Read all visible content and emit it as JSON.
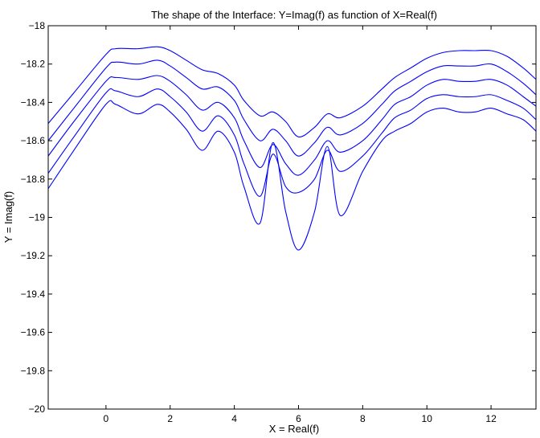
{
  "chart_data": {
    "type": "line",
    "title": "The shape of the Interface: Y=Imag(f) as function of X=Real(f)",
    "xlabel": "X = Real(f)",
    "ylabel": "Y = Imag(f)",
    "xlim": [
      -1.8,
      13.4
    ],
    "ylim": [
      -20,
      -18
    ],
    "xticks": [
      0,
      2,
      4,
      6,
      8,
      10,
      12
    ],
    "yticks": [
      -20,
      -19.8,
      -19.6,
      -19.4,
      -19.2,
      -19,
      -18.8,
      -18.6,
      -18.4,
      -18.2,
      -18
    ],
    "grid": false,
    "legend": "none",
    "line_color": "#0000ff",
    "series": [
      {
        "x": [
          -1.8,
          -1.0,
          0.0,
          0.3,
          1.0,
          1.6,
          2.0,
          2.5,
          3.0,
          3.5,
          4.0,
          4.3,
          4.8,
          5.2,
          5.6,
          6.0,
          6.5,
          6.9,
          7.3,
          8.0,
          8.6,
          9.0,
          9.5,
          10.0,
          10.5,
          11.0,
          11.5,
          12.0,
          12.5,
          13.0,
          13.4
        ],
        "y": [
          -18.51,
          -18.35,
          -18.15,
          -18.12,
          -18.12,
          -18.11,
          -18.13,
          -18.18,
          -18.23,
          -18.25,
          -18.31,
          -18.39,
          -18.47,
          -18.45,
          -18.5,
          -18.58,
          -18.53,
          -18.46,
          -18.48,
          -18.42,
          -18.33,
          -18.27,
          -18.22,
          -18.17,
          -18.14,
          -18.13,
          -18.13,
          -18.13,
          -18.16,
          -18.22,
          -18.28
        ]
      },
      {
        "x": [
          -1.8,
          -1.0,
          0.0,
          0.3,
          1.0,
          1.6,
          2.0,
          2.5,
          3.0,
          3.5,
          4.0,
          4.3,
          4.8,
          5.2,
          5.6,
          6.0,
          6.5,
          6.9,
          7.3,
          8.0,
          8.6,
          9.0,
          9.5,
          10.0,
          10.5,
          11.0,
          11.5,
          12.0,
          12.5,
          13.0,
          13.4
        ],
        "y": [
          -18.6,
          -18.43,
          -18.22,
          -18.19,
          -18.2,
          -18.18,
          -18.21,
          -18.27,
          -18.33,
          -18.32,
          -18.39,
          -18.49,
          -18.6,
          -18.54,
          -18.6,
          -18.68,
          -18.61,
          -18.53,
          -18.57,
          -18.51,
          -18.41,
          -18.34,
          -18.29,
          -18.24,
          -18.21,
          -18.21,
          -18.21,
          -18.2,
          -18.24,
          -18.3,
          -18.36
        ]
      },
      {
        "x": [
          -1.8,
          -1.0,
          0.0,
          0.3,
          1.0,
          1.6,
          2.0,
          2.5,
          3.0,
          3.5,
          4.0,
          4.3,
          4.8,
          5.2,
          5.6,
          6.0,
          6.5,
          6.9,
          7.3,
          8.0,
          8.6,
          9.0,
          9.5,
          10.0,
          10.5,
          11.0,
          11.5,
          12.0,
          12.5,
          13.0,
          13.4
        ],
        "y": [
          -18.68,
          -18.5,
          -18.29,
          -18.27,
          -18.28,
          -18.26,
          -18.29,
          -18.36,
          -18.44,
          -18.4,
          -18.48,
          -18.6,
          -18.74,
          -18.62,
          -18.72,
          -18.78,
          -18.7,
          -18.6,
          -18.66,
          -18.6,
          -18.49,
          -18.41,
          -18.37,
          -18.31,
          -18.28,
          -18.29,
          -18.29,
          -18.28,
          -18.31,
          -18.37,
          -18.42
        ]
      },
      {
        "x": [
          -1.8,
          -1.0,
          0.0,
          0.3,
          1.0,
          1.6,
          2.0,
          2.5,
          3.0,
          3.5,
          4.0,
          4.3,
          4.8,
          5.2,
          5.6,
          6.0,
          6.5,
          6.9,
          7.3,
          8.0,
          8.6,
          9.0,
          9.5,
          10.0,
          10.5,
          11.0,
          11.5,
          12.0,
          12.5,
          13.0,
          13.4
        ],
        "y": [
          -18.77,
          -18.58,
          -18.35,
          -18.34,
          -18.37,
          -18.33,
          -18.37,
          -18.45,
          -18.55,
          -18.47,
          -18.57,
          -18.72,
          -18.89,
          -18.67,
          -18.84,
          -18.87,
          -18.8,
          -18.65,
          -18.76,
          -18.68,
          -18.56,
          -18.48,
          -18.44,
          -18.38,
          -18.36,
          -18.37,
          -18.37,
          -18.36,
          -18.39,
          -18.43,
          -18.49
        ]
      },
      {
        "x": [
          -1.8,
          -1.0,
          0.0,
          0.3,
          1.0,
          1.6,
          2.0,
          2.5,
          3.0,
          3.5,
          4.0,
          4.3,
          4.8,
          5.2,
          5.6,
          6.0,
          6.5,
          6.9,
          7.3,
          8.0,
          8.6,
          9.0,
          9.5,
          10.0,
          10.5,
          11.0,
          11.5,
          12.0,
          12.5,
          13.0,
          13.4
        ],
        "y": [
          -18.85,
          -18.65,
          -18.41,
          -18.41,
          -18.46,
          -18.41,
          -18.45,
          -18.54,
          -18.65,
          -18.55,
          -18.66,
          -18.84,
          -19.03,
          -18.61,
          -18.97,
          -19.17,
          -18.97,
          -18.63,
          -18.99,
          -18.76,
          -18.6,
          -18.55,
          -18.51,
          -18.45,
          -18.43,
          -18.45,
          -18.45,
          -18.43,
          -18.46,
          -18.49,
          -18.55
        ]
      }
    ]
  }
}
